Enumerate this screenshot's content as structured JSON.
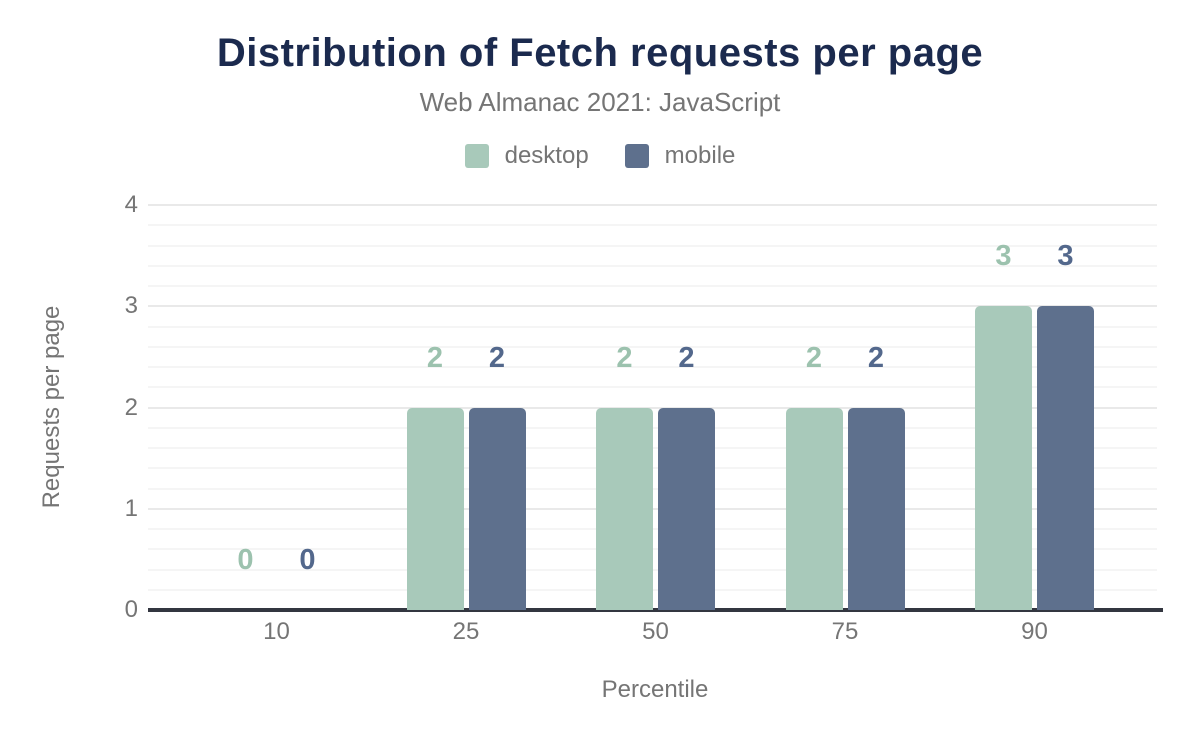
{
  "colors": {
    "title": "#1b2a4e",
    "text_muted": "#757575",
    "axis_line": "#333640",
    "grid_major": "#e9e9e9",
    "grid_minor": "#f5f5f5",
    "background": "#ffffff"
  },
  "chart_data": {
    "type": "bar",
    "title": "Distribution of Fetch requests per page",
    "subtitle": "Web Almanac 2021: JavaScript",
    "xlabel": "Percentile",
    "ylabel": "Requests per page",
    "categories": [
      "10",
      "25",
      "50",
      "75",
      "90"
    ],
    "series": [
      {
        "name": "desktop",
        "values": [
          0,
          2,
          2,
          2,
          3
        ],
        "color": "#a8c9ba",
        "label_color": "#9cc2ae"
      },
      {
        "name": "mobile",
        "values": [
          0,
          2,
          2,
          2,
          3
        ],
        "color": "#5e708d",
        "label_color": "#53688c"
      }
    ],
    "ylim": [
      0,
      4
    ],
    "yticks": [
      0,
      1,
      2,
      3,
      4
    ],
    "minor_grid_step": 0.2,
    "grid": true,
    "legend_position": "top"
  }
}
